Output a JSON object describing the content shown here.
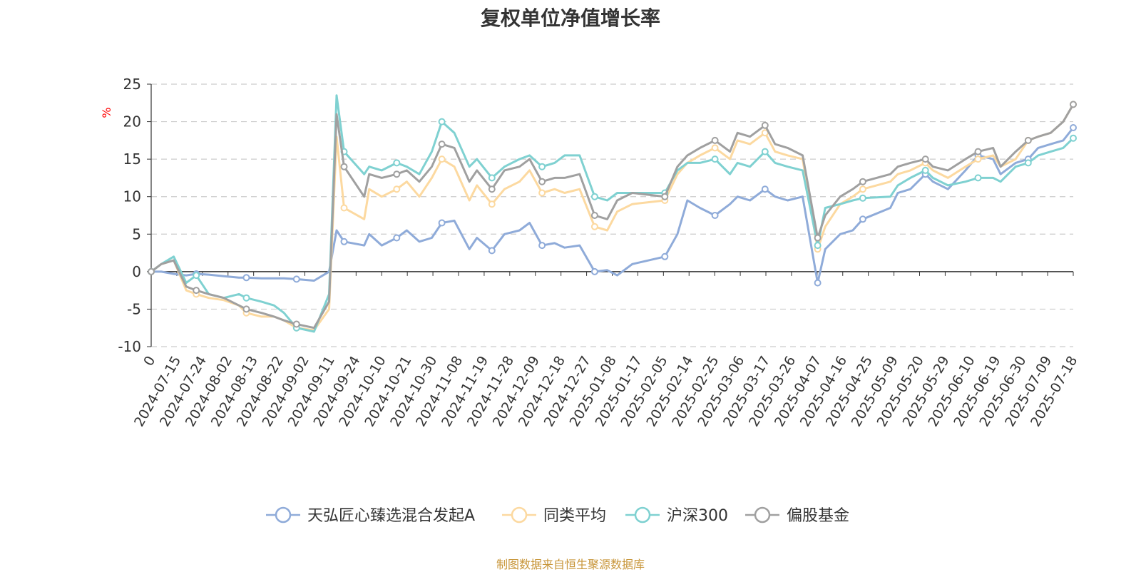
{
  "page": {
    "title": "复权单位净值增长率",
    "source": "制图数据来自恒生聚源数据库"
  },
  "chart_data": {
    "type": "line",
    "title": "复权单位净值增长率",
    "ylabel": "%",
    "ylim": [
      -10,
      25
    ],
    "yticks": [
      25,
      20,
      15,
      10,
      5,
      0,
      -5,
      -10
    ],
    "xlim": [
      "2024-07-15",
      "2025-07-18"
    ],
    "x_tick_labels": [
      "0",
      "2024-07-15",
      "2024-07-24",
      "2024-08-02",
      "2024-08-13",
      "2024-08-22",
      "2024-09-02",
      "2024-09-11",
      "2024-09-24",
      "2024-10-10",
      "2024-10-21",
      "2024-10-30",
      "2024-11-08",
      "2024-11-19",
      "2024-11-28",
      "2024-12-09",
      "2024-12-18",
      "2024-12-27",
      "2025-01-08",
      "2025-01-17",
      "2025-02-05",
      "2025-02-14",
      "2025-02-25",
      "2025-03-06",
      "2025-03-17",
      "2025-03-26",
      "2025-04-07",
      "2025-04-16",
      "2025-04-25",
      "2025-05-09",
      "2025-05-20",
      "2025-05-29",
      "2025-06-10",
      "2025-06-19",
      "2025-06-30",
      "2025-07-09",
      "2025-07-18"
    ],
    "grid": true,
    "legend_position": "bottom",
    "x": [
      "2024-07-15",
      "2024-07-19",
      "2024-07-24",
      "2024-07-29",
      "2024-08-02",
      "2024-08-07",
      "2024-08-13",
      "2024-08-19",
      "2024-08-22",
      "2024-08-28",
      "2024-09-02",
      "2024-09-06",
      "2024-09-11",
      "2024-09-18",
      "2024-09-24",
      "2024-09-27",
      "2024-09-30",
      "2024-10-08",
      "2024-10-10",
      "2024-10-15",
      "2024-10-21",
      "2024-10-25",
      "2024-10-30",
      "2024-11-04",
      "2024-11-08",
      "2024-11-13",
      "2024-11-19",
      "2024-11-22",
      "2024-11-28",
      "2024-12-03",
      "2024-12-09",
      "2024-12-13",
      "2024-12-18",
      "2024-12-23",
      "2024-12-27",
      "2025-01-02",
      "2025-01-08",
      "2025-01-13",
      "2025-01-17",
      "2025-01-23",
      "2025-02-05",
      "2025-02-10",
      "2025-02-14",
      "2025-02-19",
      "2025-02-25",
      "2025-03-03",
      "2025-03-06",
      "2025-03-11",
      "2025-03-17",
      "2025-03-21",
      "2025-03-26",
      "2025-04-01",
      "2025-04-07",
      "2025-04-10",
      "2025-04-16",
      "2025-04-21",
      "2025-04-25",
      "2025-05-06",
      "2025-05-09",
      "2025-05-14",
      "2025-05-20",
      "2025-05-23",
      "2025-05-29",
      "2025-06-05",
      "2025-06-10",
      "2025-06-16",
      "2025-06-19",
      "2025-06-25",
      "2025-06-30",
      "2025-07-04",
      "2025-07-09",
      "2025-07-14",
      "2025-07-18"
    ],
    "series": [
      {
        "name": "天弘匠心臻选混合发起A",
        "color": "#8fabd9",
        "values": [
          0,
          0,
          -0.3,
          -0.5,
          -0.3,
          -0.4,
          -0.6,
          -0.8,
          -0.8,
          -0.9,
          -0.9,
          -0.9,
          -1.0,
          -1.2,
          0,
          5.5,
          4.0,
          3.5,
          5.0,
          3.5,
          4.5,
          5.5,
          4.0,
          4.5,
          6.5,
          6.8,
          3.0,
          4.5,
          2.8,
          5.0,
          5.5,
          6.5,
          3.5,
          3.8,
          3.2,
          3.5,
          0,
          0.2,
          -0.5,
          1.0,
          2.0,
          5.0,
          9.5,
          8.5,
          7.5,
          9.0,
          10.0,
          9.5,
          11.0,
          10.0,
          9.5,
          10.0,
          -1.5,
          3.0,
          5.0,
          5.5,
          7.0,
          8.5,
          10.5,
          11.0,
          13.0,
          12.0,
          11.0,
          13.5,
          15.5,
          15.0,
          13.0,
          14.5,
          15.0,
          16.5,
          17.0,
          17.5,
          19.2
        ]
      },
      {
        "name": "同类平均",
        "color": "#fcd9a0",
        "values": [
          0,
          1.0,
          1.5,
          -2.5,
          -3.0,
          -3.5,
          -3.8,
          -4.5,
          -5.5,
          -6.0,
          -6.0,
          -6.5,
          -7.5,
          -7.8,
          -5.0,
          18.0,
          8.5,
          7.0,
          11.0,
          10.0,
          11.0,
          12.0,
          10.0,
          12.5,
          15.0,
          14.0,
          9.5,
          11.5,
          9.0,
          11.0,
          12.0,
          13.5,
          10.5,
          11.0,
          10.5,
          11.0,
          6.0,
          5.5,
          8.0,
          9.0,
          9.5,
          13.0,
          14.5,
          15.5,
          16.5,
          15.0,
          17.5,
          17.0,
          18.5,
          16.0,
          15.5,
          15.0,
          3.0,
          6.0,
          9.0,
          10.0,
          11.0,
          12.0,
          13.0,
          13.5,
          14.5,
          13.5,
          12.5,
          14.0,
          15.0,
          15.5,
          14.0,
          15.0,
          17.5,
          18.0,
          18.5,
          20.0,
          22.3
        ]
      },
      {
        "name": "沪深300",
        "color": "#7fd1d1",
        "values": [
          0,
          1.0,
          2.0,
          -1.5,
          -0.5,
          -3.0,
          -3.5,
          -3.0,
          -3.5,
          -4.0,
          -4.5,
          -5.5,
          -7.5,
          -8.0,
          -3.0,
          23.5,
          16.0,
          13.0,
          14.0,
          13.5,
          14.5,
          14.0,
          13.0,
          16.0,
          20.0,
          18.5,
          14.0,
          15.0,
          12.5,
          14.0,
          15.0,
          15.5,
          14.0,
          14.5,
          15.5,
          15.5,
          10.0,
          9.5,
          10.5,
          10.5,
          10.5,
          13.5,
          14.5,
          14.5,
          15.0,
          13.0,
          14.5,
          14.0,
          16.0,
          14.5,
          14.0,
          13.5,
          3.5,
          8.5,
          9.0,
          9.5,
          9.8,
          10.0,
          11.5,
          12.5,
          13.5,
          12.5,
          11.5,
          12.0,
          12.5,
          12.5,
          12.0,
          14.0,
          14.5,
          15.5,
          16.0,
          16.5,
          17.8
        ]
      },
      {
        "name": "偏股基金",
        "color": "#a0a0a0",
        "values": [
          0,
          1.0,
          1.5,
          -2.0,
          -2.5,
          -3.0,
          -3.5,
          -4.5,
          -5.0,
          -5.5,
          -6.0,
          -6.5,
          -7.0,
          -7.5,
          -4.0,
          21.0,
          14.0,
          10.0,
          13.0,
          12.5,
          13.0,
          13.5,
          12.0,
          14.0,
          17.0,
          16.5,
          12.0,
          13.5,
          11.0,
          13.5,
          14.0,
          15.0,
          12.0,
          12.5,
          12.5,
          13.0,
          7.5,
          7.0,
          9.5,
          10.5,
          10.0,
          14.0,
          15.5,
          16.5,
          17.5,
          16.0,
          18.5,
          18.0,
          19.5,
          17.0,
          16.5,
          15.5,
          4.5,
          7.5,
          10.0,
          11.0,
          12.0,
          13.0,
          14.0,
          14.5,
          15.0,
          14.0,
          13.5,
          15.0,
          16.0,
          16.5,
          14.0,
          16.0,
          17.5,
          18.0,
          18.5,
          20.0,
          22.3
        ]
      }
    ]
  }
}
